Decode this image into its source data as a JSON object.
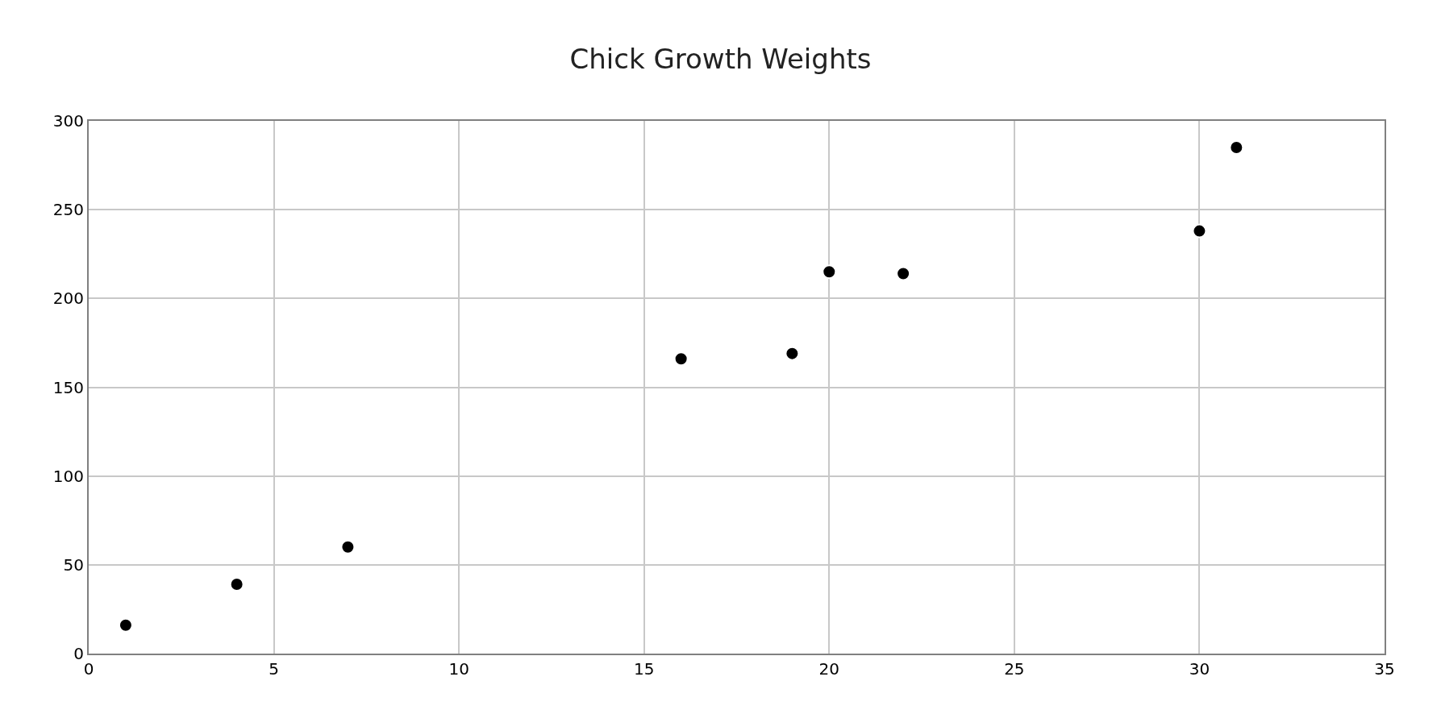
{
  "chart_data": {
    "type": "scatter",
    "title": "Chick Growth Weights",
    "x": [
      1,
      4,
      7,
      16,
      19,
      20,
      22,
      30,
      31
    ],
    "series": [
      {
        "color": "#000000",
        "values": [
          16,
          39,
          60,
          166,
          169,
          215,
          214,
          238,
          285
        ]
      }
    ],
    "xlim": [
      0,
      35
    ],
    "xticks": [
      0,
      5,
      10,
      15,
      20,
      25,
      30,
      35
    ],
    "ylim": [
      0,
      300
    ],
    "yticks": [
      0,
      50,
      100,
      150,
      200,
      250,
      300
    ],
    "grid": true,
    "legend": false,
    "marker": "circle"
  }
}
